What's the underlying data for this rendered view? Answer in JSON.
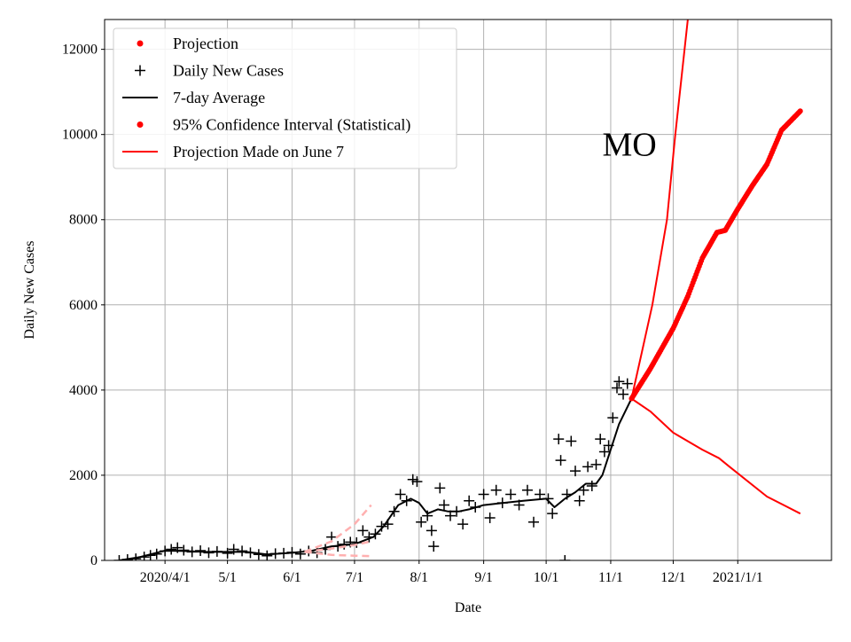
{
  "chart_data": {
    "type": "line",
    "xlabel": "Date",
    "ylabel": "Daily New Cases",
    "annotation": {
      "text": "MO",
      "x": "2020-11-10",
      "y": 9800
    },
    "xlim": [
      "2020-03-03",
      "2021-02-15"
    ],
    "ylim": [
      0,
      12700
    ],
    "grid": true,
    "legend_placement": "upper-left",
    "x_ticks": [
      {
        "date": "2020-04-01",
        "label": "2020/4/1"
      },
      {
        "date": "2020-05-01",
        "label": "5/1"
      },
      {
        "date": "2020-06-01",
        "label": "6/1"
      },
      {
        "date": "2020-07-01",
        "label": "7/1"
      },
      {
        "date": "2020-08-01",
        "label": "8/1"
      },
      {
        "date": "2020-09-01",
        "label": "9/1"
      },
      {
        "date": "2020-10-01",
        "label": "10/1"
      },
      {
        "date": "2020-11-01",
        "label": "11/1"
      },
      {
        "date": "2020-12-01",
        "label": "12/1"
      },
      {
        "date": "2021-01-01",
        "label": "2021/1/1"
      }
    ],
    "y_ticks": [
      0,
      2000,
      4000,
      6000,
      8000,
      10000,
      12000
    ],
    "legend": [
      {
        "label": "Projection",
        "marker": "dot",
        "color": "#ff0000"
      },
      {
        "label": "Daily New Cases",
        "marker": "plus",
        "color": "#000000"
      },
      {
        "label": "7-day Average",
        "marker": "line",
        "color": "#000000"
      },
      {
        "label": "95% Confidence Interval (Statistical)",
        "marker": "dot",
        "color": "#ff0000"
      },
      {
        "label": "Projection Made on June 7",
        "marker": "line",
        "color": "#ff0000"
      }
    ],
    "series": [
      {
        "key": "daily",
        "style": "plus",
        "color": "#000000",
        "points": [
          [
            "2020-03-10",
            0
          ],
          [
            "2020-03-14",
            20
          ],
          [
            "2020-03-18",
            40
          ],
          [
            "2020-03-22",
            80
          ],
          [
            "2020-03-25",
            120
          ],
          [
            "2020-03-28",
            150
          ],
          [
            "2020-04-01",
            220
          ],
          [
            "2020-04-04",
            260
          ],
          [
            "2020-04-07",
            300
          ],
          [
            "2020-04-10",
            240
          ],
          [
            "2020-04-14",
            200
          ],
          [
            "2020-04-18",
            230
          ],
          [
            "2020-04-22",
            180
          ],
          [
            "2020-04-26",
            210
          ],
          [
            "2020-05-01",
            170
          ],
          [
            "2020-05-04",
            260
          ],
          [
            "2020-05-08",
            220
          ],
          [
            "2020-05-12",
            180
          ],
          [
            "2020-05-16",
            140
          ],
          [
            "2020-05-20",
            110
          ],
          [
            "2020-05-24",
            160
          ],
          [
            "2020-05-28",
            170
          ],
          [
            "2020-06-01",
            190
          ],
          [
            "2020-06-05",
            150
          ],
          [
            "2020-06-09",
            220
          ],
          [
            "2020-06-13",
            180
          ],
          [
            "2020-06-17",
            260
          ],
          [
            "2020-06-20",
            550
          ],
          [
            "2020-06-23",
            330
          ],
          [
            "2020-06-26",
            380
          ],
          [
            "2020-06-29",
            430
          ],
          [
            "2020-07-02",
            420
          ],
          [
            "2020-07-05",
            700
          ],
          [
            "2020-07-08",
            550
          ],
          [
            "2020-07-11",
            620
          ],
          [
            "2020-07-14",
            800
          ],
          [
            "2020-07-17",
            850
          ],
          [
            "2020-07-20",
            1150
          ],
          [
            "2020-07-23",
            1550
          ],
          [
            "2020-07-26",
            1400
          ],
          [
            "2020-07-29",
            1900
          ],
          [
            "2020-07-31",
            1850
          ],
          [
            "2020-08-02",
            900
          ],
          [
            "2020-08-05",
            1050
          ],
          [
            "2020-08-07",
            700
          ],
          [
            "2020-08-08",
            330
          ],
          [
            "2020-08-11",
            1700
          ],
          [
            "2020-08-13",
            1300
          ],
          [
            "2020-08-16",
            1050
          ],
          [
            "2020-08-19",
            1150
          ],
          [
            "2020-08-22",
            850
          ],
          [
            "2020-08-25",
            1400
          ],
          [
            "2020-08-28",
            1250
          ],
          [
            "2020-09-01",
            1550
          ],
          [
            "2020-09-04",
            1000
          ],
          [
            "2020-09-07",
            1650
          ],
          [
            "2020-09-10",
            1350
          ],
          [
            "2020-09-14",
            1550
          ],
          [
            "2020-09-18",
            1300
          ],
          [
            "2020-09-22",
            1650
          ],
          [
            "2020-09-25",
            900
          ],
          [
            "2020-09-28",
            1550
          ],
          [
            "2020-10-02",
            1450
          ],
          [
            "2020-10-04",
            1100
          ],
          [
            "2020-10-07",
            2850
          ],
          [
            "2020-10-08",
            2350
          ],
          [
            "2020-10-10",
            0
          ],
          [
            "2020-10-11",
            1550
          ],
          [
            "2020-10-13",
            2800
          ],
          [
            "2020-10-15",
            2100
          ],
          [
            "2020-10-17",
            1400
          ],
          [
            "2020-10-19",
            1650
          ],
          [
            "2020-10-21",
            2200
          ],
          [
            "2020-10-23",
            1750
          ],
          [
            "2020-10-25",
            2250
          ],
          [
            "2020-10-27",
            2850
          ],
          [
            "2020-10-29",
            2550
          ],
          [
            "2020-10-31",
            2700
          ],
          [
            "2020-11-02",
            3350
          ],
          [
            "2020-11-04",
            4050
          ],
          [
            "2020-11-05",
            4200
          ],
          [
            "2020-11-07",
            3900
          ],
          [
            "2020-11-09",
            4150
          ]
        ]
      },
      {
        "key": "avg7",
        "style": "line",
        "color": "#000000",
        "points": [
          [
            "2020-03-10",
            0
          ],
          [
            "2020-03-20",
            80
          ],
          [
            "2020-04-01",
            230
          ],
          [
            "2020-04-10",
            220
          ],
          [
            "2020-04-20",
            200
          ],
          [
            "2020-05-01",
            200
          ],
          [
            "2020-05-10",
            200
          ],
          [
            "2020-05-20",
            140
          ],
          [
            "2020-06-01",
            180
          ],
          [
            "2020-06-10",
            220
          ],
          [
            "2020-06-20",
            330
          ],
          [
            "2020-07-01",
            380
          ],
          [
            "2020-07-10",
            550
          ],
          [
            "2020-07-15",
            800
          ],
          [
            "2020-07-22",
            1300
          ],
          [
            "2020-07-28",
            1450
          ],
          [
            "2020-08-01",
            1350
          ],
          [
            "2020-08-05",
            1100
          ],
          [
            "2020-08-10",
            1200
          ],
          [
            "2020-08-15",
            1150
          ],
          [
            "2020-08-20",
            1150
          ],
          [
            "2020-08-25",
            1200
          ],
          [
            "2020-09-01",
            1300
          ],
          [
            "2020-09-10",
            1350
          ],
          [
            "2020-09-20",
            1400
          ],
          [
            "2020-10-01",
            1450
          ],
          [
            "2020-10-05",
            1250
          ],
          [
            "2020-10-10",
            1450
          ],
          [
            "2020-10-15",
            1600
          ],
          [
            "2020-10-20",
            1800
          ],
          [
            "2020-10-25",
            1800
          ],
          [
            "2020-10-28",
            2000
          ],
          [
            "2020-11-01",
            2600
          ],
          [
            "2020-11-05",
            3200
          ],
          [
            "2020-11-11",
            3800
          ]
        ]
      },
      {
        "key": "projection",
        "style": "dots",
        "color": "#ff0000",
        "points": [
          [
            "2020-11-11",
            3800
          ],
          [
            "2020-11-20",
            4500
          ],
          [
            "2020-12-01",
            5450
          ],
          [
            "2020-12-08",
            6200
          ],
          [
            "2020-12-15",
            7100
          ],
          [
            "2020-12-22",
            7700
          ],
          [
            "2020-12-26",
            7750
          ],
          [
            "2021-01-01",
            8250
          ],
          [
            "2021-01-08",
            8800
          ],
          [
            "2021-01-15",
            9300
          ],
          [
            "2021-01-22",
            10100
          ],
          [
            "2021-01-31",
            10550
          ]
        ]
      },
      {
        "key": "ci_upper",
        "style": "line",
        "color": "#ff0000",
        "points": [
          [
            "2020-11-11",
            3800
          ],
          [
            "2020-11-16",
            4900
          ],
          [
            "2020-11-21",
            6000
          ],
          [
            "2020-11-28",
            8000
          ],
          [
            "2020-12-02",
            10000
          ],
          [
            "2020-12-08",
            12700
          ]
        ]
      },
      {
        "key": "ci_lower",
        "style": "line",
        "color": "#ff0000",
        "points": [
          [
            "2020-11-11",
            3800
          ],
          [
            "2020-11-20",
            3500
          ],
          [
            "2020-12-01",
            3000
          ],
          [
            "2020-12-15",
            2600
          ],
          [
            "2020-12-23",
            2400
          ],
          [
            "2020-12-28",
            2200
          ],
          [
            "2021-01-15",
            1500
          ],
          [
            "2021-01-31",
            1100
          ]
        ]
      },
      {
        "key": "june7_upper",
        "style": "dashed",
        "color": "#ffb0b0",
        "points": [
          [
            "2020-06-07",
            200
          ],
          [
            "2020-06-20",
            450
          ],
          [
            "2020-07-01",
            850
          ],
          [
            "2020-07-09",
            1300
          ]
        ]
      },
      {
        "key": "june7_mid",
        "style": "dashed",
        "color": "#ffb0b0",
        "points": [
          [
            "2020-06-07",
            200
          ],
          [
            "2020-06-20",
            280
          ],
          [
            "2020-07-01",
            360
          ],
          [
            "2020-07-09",
            450
          ]
        ]
      },
      {
        "key": "june7_lower",
        "style": "dashed",
        "color": "#ffb0b0",
        "points": [
          [
            "2020-06-07",
            200
          ],
          [
            "2020-06-20",
            130
          ],
          [
            "2020-07-01",
            110
          ],
          [
            "2020-07-09",
            100
          ]
        ]
      }
    ]
  }
}
